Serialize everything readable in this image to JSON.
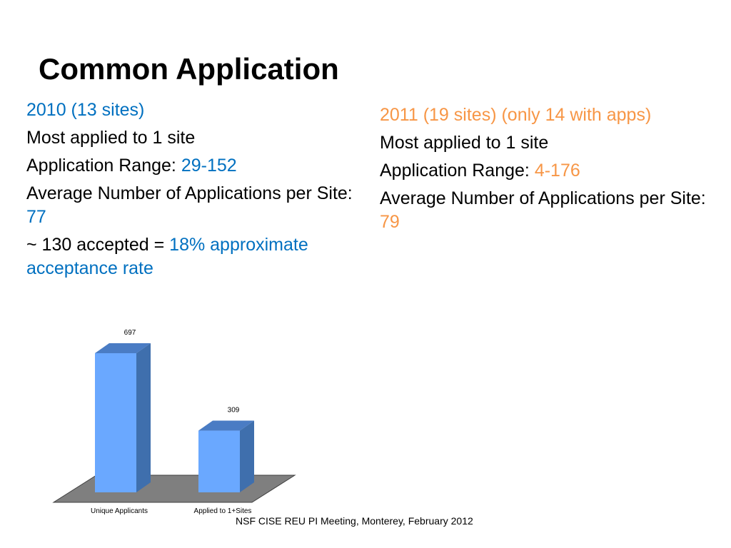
{
  "slide": {
    "title": "Common Application",
    "left": {
      "heading": "2010 (13 sites)",
      "line1": "Most  applied to 1 site",
      "range_label": "Application Range: ",
      "range_value": "29-152",
      "avg_label": "Average Number of Applications per Site: ",
      "avg_value": "77",
      "accepted_label": "~ 130 accepted = ",
      "accepted_value": "18% approximate acceptance rate"
    },
    "right": {
      "heading": "2011 (19 sites) (only 14 with apps)",
      "line1": "Most  applied to 1 site",
      "range_label": "Application Range: ",
      "range_value": "4-176",
      "avg_label": "Average Number of Applications per Site: ",
      "avg_value": "79"
    },
    "footer": "NSF CISE REU PI Meeting, Monterey, February 2012"
  },
  "colors": {
    "blue": "#0070c0",
    "orange": "#f79646",
    "bar": "#6aa8ff"
  },
  "chart_data": {
    "type": "bar",
    "categories": [
      "Unique Applicants",
      "Applied to 1+Sites"
    ],
    "values": [
      697,
      309
    ],
    "data_labels": [
      "697",
      "309"
    ],
    "ylim": [
      0,
      697
    ],
    "grid": false,
    "legend": "none"
  }
}
